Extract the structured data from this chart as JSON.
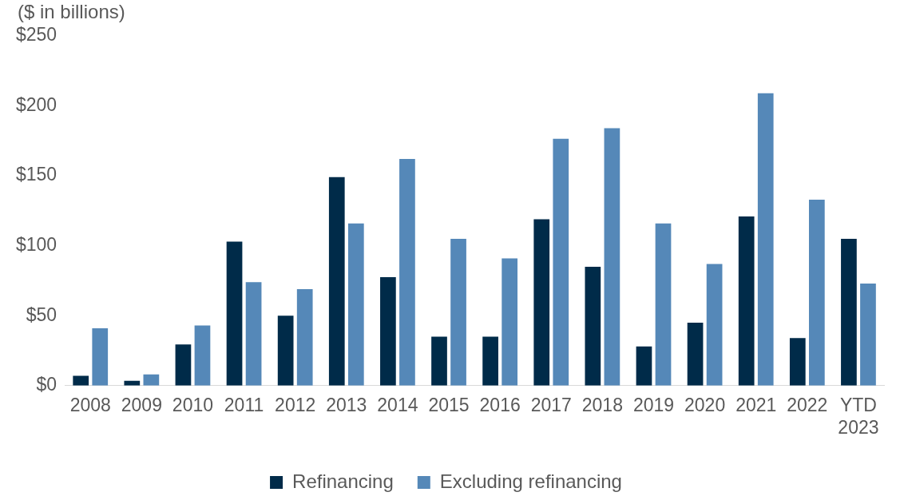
{
  "chart_data": {
    "type": "bar",
    "ylabel": "($ in billions)",
    "categories": [
      "2008",
      "2009",
      "2010",
      "2011",
      "2012",
      "2013",
      "2014",
      "2015",
      "2016",
      "2017",
      "2018",
      "2019",
      "2020",
      "2021",
      "2022",
      "YTD 2023"
    ],
    "series": [
      {
        "name": "Refinancing",
        "color": "#002b49",
        "values": [
          7,
          3.5,
          29.5,
          103,
          50,
          149,
          77.5,
          35,
          35,
          119,
          85,
          28,
          45,
          121,
          34,
          105
        ]
      },
      {
        "name": "Excluding refinancing",
        "color": "#5588b8",
        "values": [
          41,
          8,
          43,
          74,
          69,
          116,
          162,
          105,
          91,
          176.5,
          184,
          116,
          87,
          209,
          133,
          73
        ]
      }
    ],
    "ylim": [
      0,
      250
    ],
    "yticks": [
      {
        "value": 0,
        "label": "$0"
      },
      {
        "value": 50,
        "label": "$50"
      },
      {
        "value": 100,
        "label": "$100"
      },
      {
        "value": 150,
        "label": "$150"
      },
      {
        "value": 200,
        "label": "$200"
      },
      {
        "value": 250,
        "label": "$250"
      }
    ],
    "grid": false,
    "legend": "bottom"
  }
}
